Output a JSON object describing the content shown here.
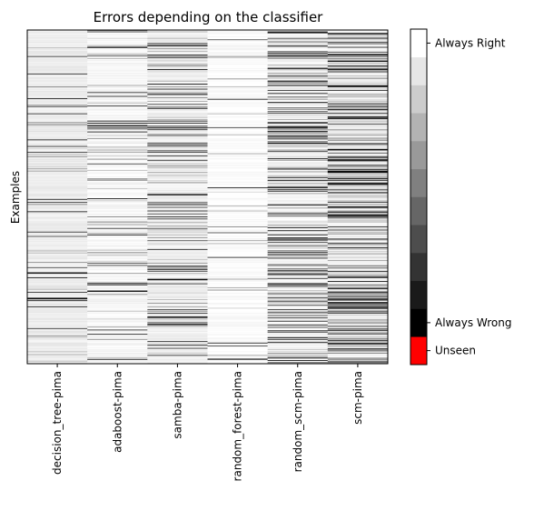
{
  "chart_data": {
    "type": "heatmap",
    "title": "Errors depending on the classifier",
    "ylabel": "Examples",
    "xlabel": "",
    "columns": [
      "decision_tree-pima",
      "adaboost-pima",
      "samba-pima",
      "random_forest-pima",
      "random_scm-pima",
      "scm-pima"
    ],
    "n_examples": 460,
    "colorbar": {
      "levels": [
        {
          "value": -1,
          "color": "#ff0000"
        },
        {
          "value": 0,
          "color": "#000000"
        },
        {
          "value": 0.1,
          "color": "#1a1a1a"
        },
        {
          "value": 0.2,
          "color": "#333333"
        },
        {
          "value": 0.3,
          "color": "#4d4d4d"
        },
        {
          "value": 0.4,
          "color": "#666666"
        },
        {
          "value": 0.5,
          "color": "#808080"
        },
        {
          "value": 0.6,
          "color": "#999999"
        },
        {
          "value": 0.7,
          "color": "#b3b3b3"
        },
        {
          "value": 0.8,
          "color": "#cccccc"
        },
        {
          "value": 0.9,
          "color": "#e6e6e6"
        },
        {
          "value": 1,
          "color": "#ffffff"
        }
      ],
      "ticks": [
        {
          "value": 1,
          "label": "Always Right"
        },
        {
          "value": 0,
          "label": "Always Wrong"
        },
        {
          "value": -1,
          "label": "Unseen"
        }
      ]
    }
  }
}
